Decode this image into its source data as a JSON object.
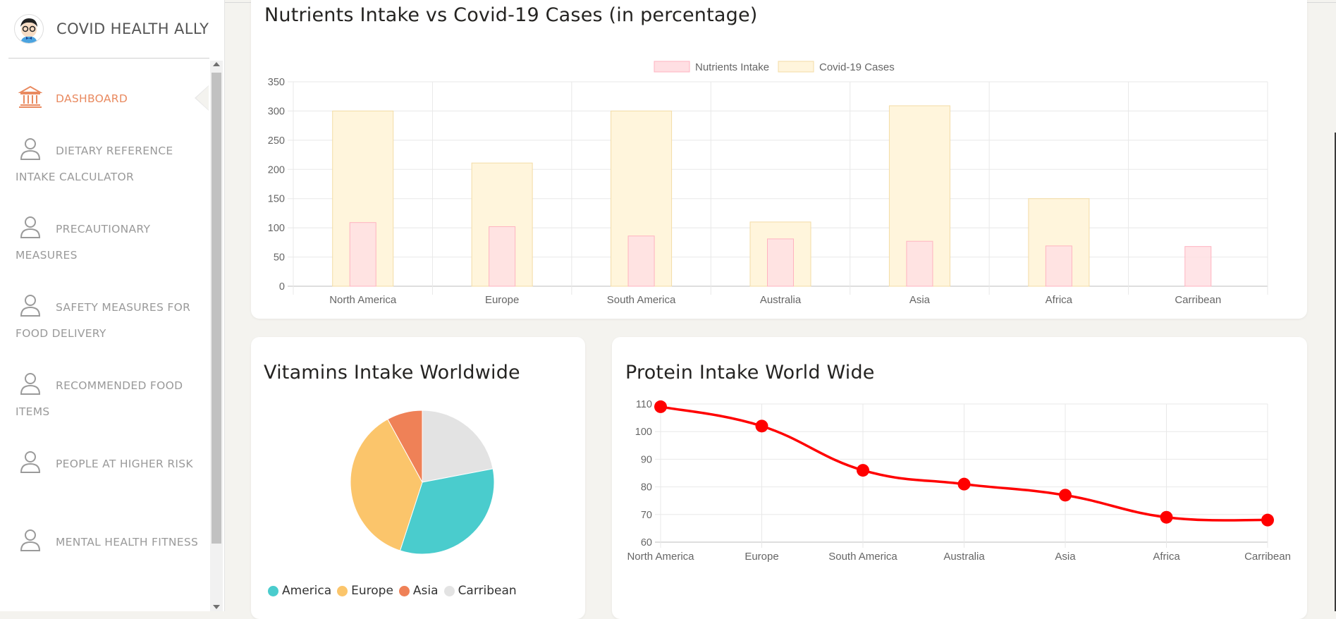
{
  "app": {
    "brand": "COVID HEALTH ALLY"
  },
  "sidebar": {
    "items": [
      {
        "label": "DASHBOARD",
        "icon": "bank-icon",
        "active": true
      },
      {
        "label": "DIETARY REFERENCE INTAKE CALCULATOR",
        "icon": "user-icon"
      },
      {
        "label": "PRECAUTIONARY MEASURES",
        "icon": "user-icon"
      },
      {
        "label": "SAFETY MEASURES FOR FOOD DELIVERY",
        "icon": "user-icon"
      },
      {
        "label": "RECOMMENDED FOOD ITEMS",
        "icon": "user-icon"
      },
      {
        "label": "PEOPLE AT HIGHER RISK",
        "icon": "user-icon"
      },
      {
        "label": "MENTAL HEALTH FITNESS",
        "icon": "user-icon"
      }
    ]
  },
  "colors": {
    "accent": "#e98a60",
    "pink": "#ffdfe3",
    "pinkBorder": "#ffb3c0",
    "cream": "#fff5dc",
    "creamBorder": "#f3dca6",
    "red": "#ff0000",
    "teal": "#4acccd",
    "yellow": "#fbc56b",
    "orange": "#ef8157",
    "grey": "#e3e3e3"
  },
  "chart_data": [
    {
      "type": "bar",
      "title": "Nutrients Intake vs Covid-19 Cases (in percentage)",
      "categories": [
        "North America",
        "Europe",
        "South America",
        "Australia",
        "Asia",
        "Africa",
        "Carribean"
      ],
      "series": [
        {
          "name": "Nutrients Intake",
          "values": [
            109,
            102,
            86,
            81,
            77,
            69,
            68
          ]
        },
        {
          "name": "Covid-19 Cases",
          "values": [
            300,
            211,
            300,
            110,
            309,
            150,
            0
          ]
        }
      ],
      "ylim": [
        0,
        350
      ],
      "yticks": [
        0,
        50,
        100,
        150,
        200,
        250,
        300,
        350
      ],
      "legend": "top-center",
      "grid": true
    },
    {
      "type": "pie",
      "title": "Vitamins Intake Worldwide",
      "labels": [
        "America",
        "Europe",
        "Asia",
        "Carribean"
      ],
      "values": [
        33,
        37,
        8,
        22
      ],
      "legend": "bottom"
    },
    {
      "type": "line",
      "title": "Protein Intake World Wide",
      "categories": [
        "North America",
        "Europe",
        "South America",
        "Australia",
        "Asia",
        "Africa",
        "Carribean"
      ],
      "values": [
        109,
        102,
        86,
        81,
        77,
        69,
        68
      ],
      "ylim": [
        60,
        110
      ],
      "yticks": [
        60,
        70,
        80,
        90,
        100,
        110
      ],
      "grid": true
    }
  ]
}
